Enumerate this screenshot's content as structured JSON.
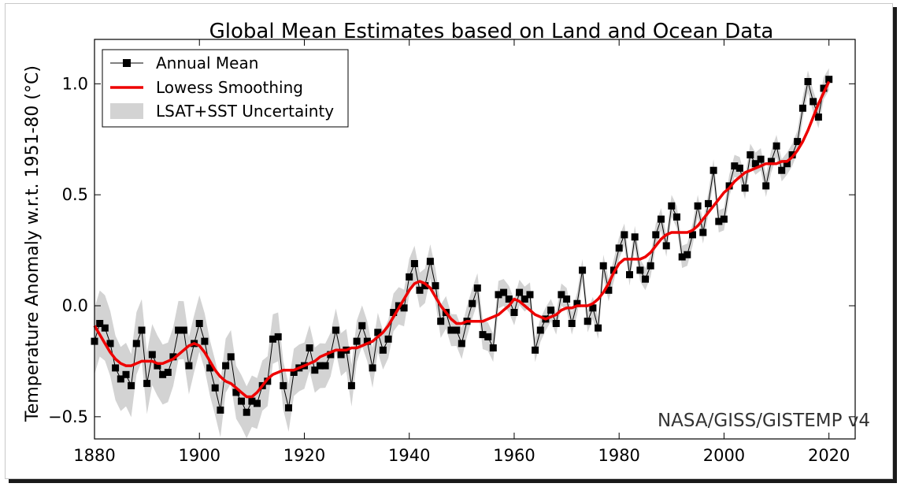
{
  "chart_data": {
    "type": "line",
    "title": "Global Mean Estimates based on Land and Ocean Data",
    "ylabel": "Temperature Anomaly w.r.t. 1951-80 (°C)",
    "xlabel": "",
    "xlim": [
      1880,
      2025
    ],
    "ylim": [
      -0.6,
      1.2
    ],
    "xticks": [
      1880,
      1900,
      1920,
      1940,
      1960,
      1980,
      2000,
      2020
    ],
    "yticks": [
      -0.5,
      0.0,
      0.5,
      1.0
    ],
    "ytick_labels": [
      "−0.5",
      "0.0",
      "0.5",
      "1.0"
    ],
    "grid": false,
    "legend_position": "top-left",
    "credit": "NASA/GISS/GISTEMP v4",
    "colors": {
      "annual": "#000000",
      "lowess": "#ee0000",
      "uncertainty": "#d3d3d3"
    },
    "series": [
      {
        "name": "Annual Mean",
        "x": [
          1880,
          1881,
          1882,
          1883,
          1884,
          1885,
          1886,
          1887,
          1888,
          1889,
          1890,
          1891,
          1892,
          1893,
          1894,
          1895,
          1896,
          1897,
          1898,
          1899,
          1900,
          1901,
          1902,
          1903,
          1904,
          1905,
          1906,
          1907,
          1908,
          1909,
          1910,
          1911,
          1912,
          1913,
          1914,
          1915,
          1916,
          1917,
          1918,
          1919,
          1920,
          1921,
          1922,
          1923,
          1924,
          1925,
          1926,
          1927,
          1928,
          1929,
          1930,
          1931,
          1932,
          1933,
          1934,
          1935,
          1936,
          1937,
          1938,
          1939,
          1940,
          1941,
          1942,
          1943,
          1944,
          1945,
          1946,
          1947,
          1948,
          1949,
          1950,
          1951,
          1952,
          1953,
          1954,
          1955,
          1956,
          1957,
          1958,
          1959,
          1960,
          1961,
          1962,
          1963,
          1964,
          1965,
          1966,
          1967,
          1968,
          1969,
          1970,
          1971,
          1972,
          1973,
          1974,
          1975,
          1976,
          1977,
          1978,
          1979,
          1980,
          1981,
          1982,
          1983,
          1984,
          1985,
          1986,
          1987,
          1988,
          1989,
          1990,
          1991,
          1992,
          1993,
          1994,
          1995,
          1996,
          1997,
          1998,
          1999,
          2000,
          2001,
          2002,
          2003,
          2004,
          2005,
          2006,
          2007,
          2008,
          2009,
          2010,
          2011,
          2012,
          2013,
          2014,
          2015,
          2016,
          2017,
          2018,
          2019,
          2020
        ],
        "values": [
          -0.16,
          -0.08,
          -0.1,
          -0.17,
          -0.28,
          -0.33,
          -0.31,
          -0.36,
          -0.17,
          -0.11,
          -0.35,
          -0.22,
          -0.27,
          -0.31,
          -0.3,
          -0.23,
          -0.11,
          -0.11,
          -0.27,
          -0.17,
          -0.08,
          -0.16,
          -0.28,
          -0.37,
          -0.47,
          -0.27,
          -0.23,
          -0.39,
          -0.43,
          -0.48,
          -0.43,
          -0.44,
          -0.36,
          -0.34,
          -0.15,
          -0.14,
          -0.36,
          -0.46,
          -0.3,
          -0.28,
          -0.27,
          -0.19,
          -0.29,
          -0.27,
          -0.27,
          -0.22,
          -0.11,
          -0.22,
          -0.2,
          -0.36,
          -0.16,
          -0.09,
          -0.16,
          -0.28,
          -0.12,
          -0.2,
          -0.15,
          -0.03,
          0.0,
          -0.01,
          0.13,
          0.19,
          0.07,
          0.09,
          0.2,
          0.09,
          -0.07,
          -0.03,
          -0.11,
          -0.11,
          -0.17,
          -0.07,
          0.01,
          0.08,
          -0.13,
          -0.14,
          -0.19,
          0.05,
          0.06,
          0.03,
          -0.03,
          0.06,
          0.03,
          0.05,
          -0.2,
          -0.11,
          -0.06,
          -0.02,
          -0.08,
          0.05,
          0.03,
          -0.08,
          0.01,
          0.16,
          -0.07,
          -0.01,
          -0.1,
          0.18,
          0.07,
          0.16,
          0.26,
          0.32,
          0.14,
          0.31,
          0.16,
          0.12,
          0.18,
          0.32,
          0.39,
          0.27,
          0.45,
          0.4,
          0.22,
          0.23,
          0.32,
          0.45,
          0.33,
          0.46,
          0.61,
          0.38,
          0.39,
          0.54,
          0.63,
          0.62,
          0.53,
          0.68,
          0.64,
          0.66,
          0.54,
          0.65,
          0.72,
          0.61,
          0.64,
          0.68,
          0.74,
          0.89,
          1.01,
          0.92,
          0.85,
          0.98,
          1.02
        ]
      },
      {
        "name": "Lowess Smoothing",
        "x": [
          1880,
          1881,
          1882,
          1883,
          1884,
          1885,
          1886,
          1887,
          1888,
          1889,
          1890,
          1891,
          1892,
          1893,
          1894,
          1895,
          1896,
          1897,
          1898,
          1899,
          1900,
          1901,
          1902,
          1903,
          1904,
          1905,
          1906,
          1907,
          1908,
          1909,
          1910,
          1911,
          1912,
          1913,
          1914,
          1915,
          1916,
          1917,
          1918,
          1919,
          1920,
          1921,
          1922,
          1923,
          1924,
          1925,
          1926,
          1927,
          1928,
          1929,
          1930,
          1931,
          1932,
          1933,
          1934,
          1935,
          1936,
          1937,
          1938,
          1939,
          1940,
          1941,
          1942,
          1943,
          1944,
          1945,
          1946,
          1947,
          1948,
          1949,
          1950,
          1951,
          1952,
          1953,
          1954,
          1955,
          1956,
          1957,
          1958,
          1959,
          1960,
          1961,
          1962,
          1963,
          1964,
          1965,
          1966,
          1967,
          1968,
          1969,
          1970,
          1971,
          1972,
          1973,
          1974,
          1975,
          1976,
          1977,
          1978,
          1979,
          1980,
          1981,
          1982,
          1983,
          1984,
          1985,
          1986,
          1987,
          1988,
          1989,
          1990,
          1991,
          1992,
          1993,
          1994,
          1995,
          1996,
          1997,
          1998,
          1999,
          2000,
          2001,
          2002,
          2003,
          2004,
          2005,
          2006,
          2007,
          2008,
          2009,
          2010,
          2011,
          2012,
          2013,
          2014,
          2015,
          2016,
          2017,
          2018,
          2019,
          2020
        ],
        "values": [
          -0.09,
          -0.13,
          -0.17,
          -0.21,
          -0.24,
          -0.26,
          -0.27,
          -0.27,
          -0.26,
          -0.25,
          -0.25,
          -0.25,
          -0.26,
          -0.26,
          -0.25,
          -0.24,
          -0.22,
          -0.2,
          -0.18,
          -0.17,
          -0.18,
          -0.21,
          -0.25,
          -0.29,
          -0.32,
          -0.34,
          -0.35,
          -0.37,
          -0.39,
          -0.41,
          -0.41,
          -0.39,
          -0.36,
          -0.33,
          -0.31,
          -0.3,
          -0.29,
          -0.29,
          -0.29,
          -0.28,
          -0.27,
          -0.26,
          -0.25,
          -0.23,
          -0.22,
          -0.21,
          -0.2,
          -0.2,
          -0.2,
          -0.19,
          -0.19,
          -0.18,
          -0.17,
          -0.16,
          -0.14,
          -0.12,
          -0.09,
          -0.05,
          -0.01,
          0.03,
          0.07,
          0.1,
          0.11,
          0.1,
          0.08,
          0.04,
          0.0,
          -0.03,
          -0.06,
          -0.08,
          -0.08,
          -0.07,
          -0.07,
          -0.07,
          -0.07,
          -0.06,
          -0.05,
          -0.04,
          -0.02,
          0.0,
          0.03,
          0.02,
          0.0,
          -0.02,
          -0.04,
          -0.05,
          -0.06,
          -0.05,
          -0.04,
          -0.02,
          -0.01,
          -0.01,
          0.0,
          0.0,
          0.0,
          0.01,
          0.03,
          0.06,
          0.1,
          0.15,
          0.19,
          0.21,
          0.21,
          0.21,
          0.21,
          0.22,
          0.24,
          0.27,
          0.3,
          0.32,
          0.33,
          0.33,
          0.33,
          0.33,
          0.34,
          0.36,
          0.39,
          0.42,
          0.45,
          0.48,
          0.51,
          0.53,
          0.56,
          0.58,
          0.6,
          0.61,
          0.62,
          0.63,
          0.64,
          0.64,
          0.64,
          0.65,
          0.65,
          0.67,
          0.7,
          0.74,
          0.79,
          0.85,
          0.91,
          0.96,
          1.01
        ]
      },
      {
        "name": "LSAT+SST Uncertainty",
        "x_span": [
          1880,
          2020
        ],
        "approx_half_width_early": 0.15,
        "approx_half_width_recent": 0.05
      }
    ]
  }
}
